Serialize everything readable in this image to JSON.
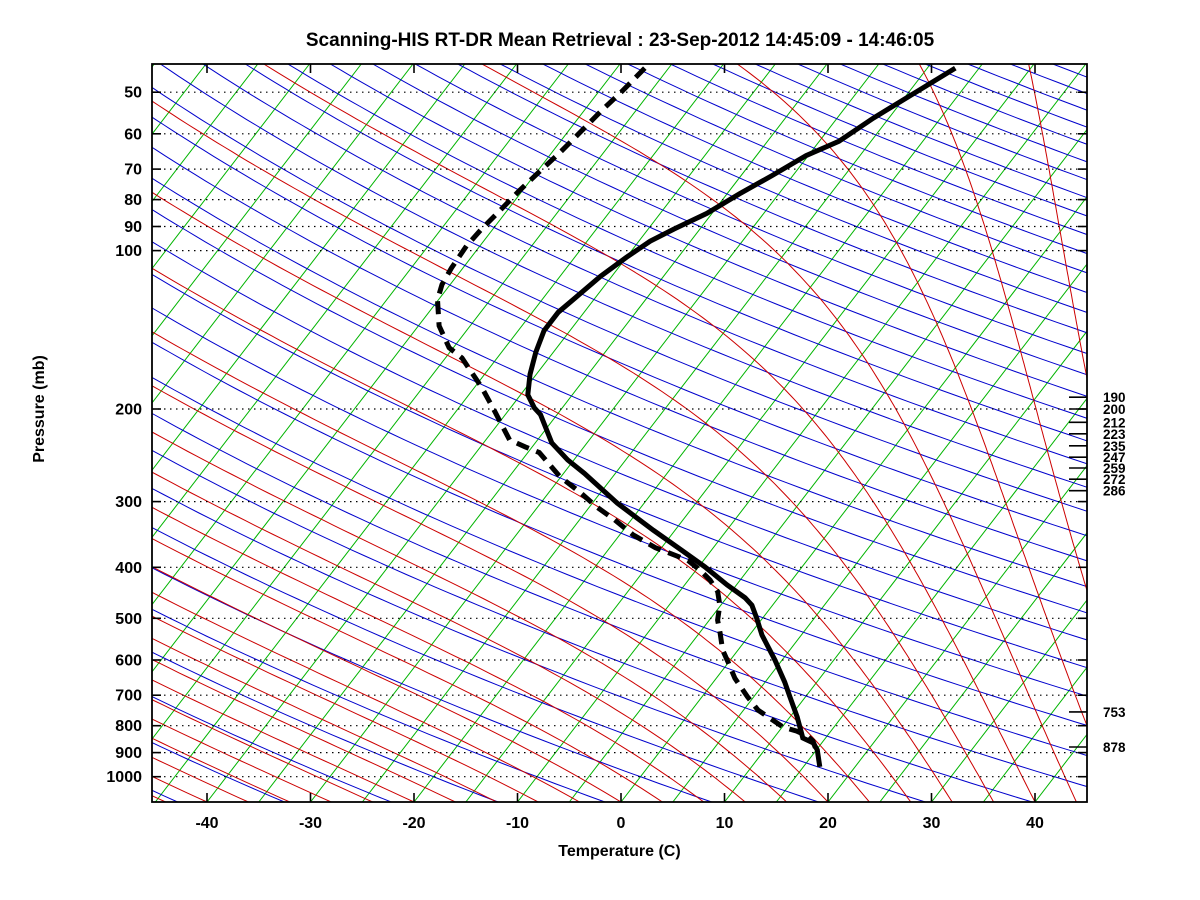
{
  "title": "Scanning-HIS RT-DR Mean Retrieval : 23-Sep-2012 14:45:09 - 14:46:05",
  "axes": {
    "x_label": "Temperature (C)",
    "y_label": "Pressure (mb)",
    "x_ticks": [
      -40,
      -30,
      -20,
      -10,
      0,
      10,
      20,
      30,
      40
    ],
    "y_ticks": [
      50,
      60,
      70,
      80,
      90,
      100,
      200,
      300,
      400,
      500,
      600,
      700,
      800,
      900,
      1000
    ],
    "right_pressure_labels": [
      190,
      200,
      212,
      223,
      235,
      247,
      259,
      272,
      286,
      753,
      878
    ]
  },
  "colors": {
    "isotherm": "#00b400",
    "dry_adiabat": "#0000cc",
    "moist_adiabat": "#cc0000",
    "pressure_line": "#000000",
    "profile": "#000000",
    "background": "#ffffff"
  },
  "chart_data": {
    "type": "line",
    "subtype": "skew-t-log-p-sounding",
    "title": "Scanning-HIS RT-DR Mean Retrieval : 23-Sep-2012 14:45:09 - 14:46:05",
    "xlabel": "Temperature (C)",
    "ylabel": "Pressure (mb)",
    "x_range_c": [
      -45.3,
      45.0
    ],
    "pressure_range_mb": [
      44.2,
      1117
    ],
    "grid": "dotted horizontal isobars at labeled pressures",
    "background_lines": {
      "isotherm_step_c": 5,
      "isotherm_min_c": -100,
      "isotherm_max_c": 45,
      "dry_adiabat_theta_min_c": -50,
      "dry_adiabat_theta_max_c": 510,
      "dry_adiabat_theta_step_c": 10,
      "moist_adiabat_start_min_c": -52,
      "moist_adiabat_start_max_c": 100,
      "moist_adiabat_start_step_c": 4
    },
    "series": [
      {
        "name": "temperature",
        "style": "solid",
        "points_p_t": [
          [
            45,
            -22.3
          ],
          [
            51,
            -24.7
          ],
          [
            56,
            -26.5
          ],
          [
            62,
            -28.1
          ],
          [
            66,
            -30.2
          ],
          [
            72,
            -32.0
          ],
          [
            78,
            -33.8
          ],
          [
            85,
            -35.5
          ],
          [
            91,
            -37.5
          ],
          [
            96,
            -38.9
          ],
          [
            103,
            -40.0
          ],
          [
            112,
            -41.1
          ],
          [
            124,
            -42.0
          ],
          [
            131,
            -42.5
          ],
          [
            142,
            -42.5
          ],
          [
            156,
            -41.7
          ],
          [
            172,
            -40.6
          ],
          [
            188,
            -39.3
          ],
          [
            199,
            -37.7
          ],
          [
            205,
            -36.6
          ],
          [
            232,
            -33.4
          ],
          [
            250,
            -30.6
          ],
          [
            265,
            -28.0
          ],
          [
            302,
            -22.6
          ],
          [
            340,
            -17.1
          ],
          [
            371,
            -12.9
          ],
          [
            399,
            -9.4
          ],
          [
            432,
            -5.9
          ],
          [
            457,
            -3.2
          ],
          [
            472,
            -2.0
          ],
          [
            499,
            -0.6
          ],
          [
            538,
            1.2
          ],
          [
            600,
            4.3
          ],
          [
            661,
            6.9
          ],
          [
            705,
            8.5
          ],
          [
            770,
            10.7
          ],
          [
            815,
            12.0
          ],
          [
            844,
            12.8
          ],
          [
            863,
            14.2
          ],
          [
            890,
            15.1
          ],
          [
            958,
            16.6
          ]
        ]
      },
      {
        "name": "dewpoint",
        "style": "dashed",
        "points_p_t": [
          [
            45,
            -52.3
          ],
          [
            50,
            -52.8
          ],
          [
            54,
            -53.3
          ],
          [
            60,
            -53.8
          ],
          [
            65,
            -54.2
          ],
          [
            71,
            -54.8
          ],
          [
            77,
            -55.3
          ],
          [
            84,
            -55.7
          ],
          [
            91,
            -56.1
          ],
          [
            98,
            -56.3
          ],
          [
            108,
            -56.1
          ],
          [
            116,
            -55.8
          ],
          [
            124,
            -55.1
          ],
          [
            139,
            -53.0
          ],
          [
            153,
            -50.4
          ],
          [
            160,
            -48.4
          ],
          [
            182,
            -44.3
          ],
          [
            199,
            -41.7
          ],
          [
            215,
            -39.5
          ],
          [
            229,
            -37.7
          ],
          [
            236,
            -35.7
          ],
          [
            242,
            -33.9
          ],
          [
            269,
            -30.1
          ],
          [
            288,
            -27.0
          ],
          [
            307,
            -24.3
          ],
          [
            325,
            -21.6
          ],
          [
            347,
            -18.7
          ],
          [
            367,
            -15.6
          ],
          [
            376,
            -13.8
          ],
          [
            388,
            -11.5
          ],
          [
            405,
            -9.6
          ],
          [
            423,
            -7.9
          ],
          [
            445,
            -6.3
          ],
          [
            472,
            -5.1
          ],
          [
            504,
            -4.2
          ],
          [
            533,
            -3.0
          ],
          [
            574,
            -1.5
          ],
          [
            607,
            0.0
          ],
          [
            650,
            1.8
          ],
          [
            705,
            4.4
          ],
          [
            747,
            6.4
          ],
          [
            773,
            8.1
          ],
          [
            805,
            10.1
          ],
          [
            819,
            11.7
          ],
          [
            837,
            13.1
          ],
          [
            855,
            14.0
          ],
          [
            890,
            15.0
          ]
        ]
      }
    ]
  }
}
